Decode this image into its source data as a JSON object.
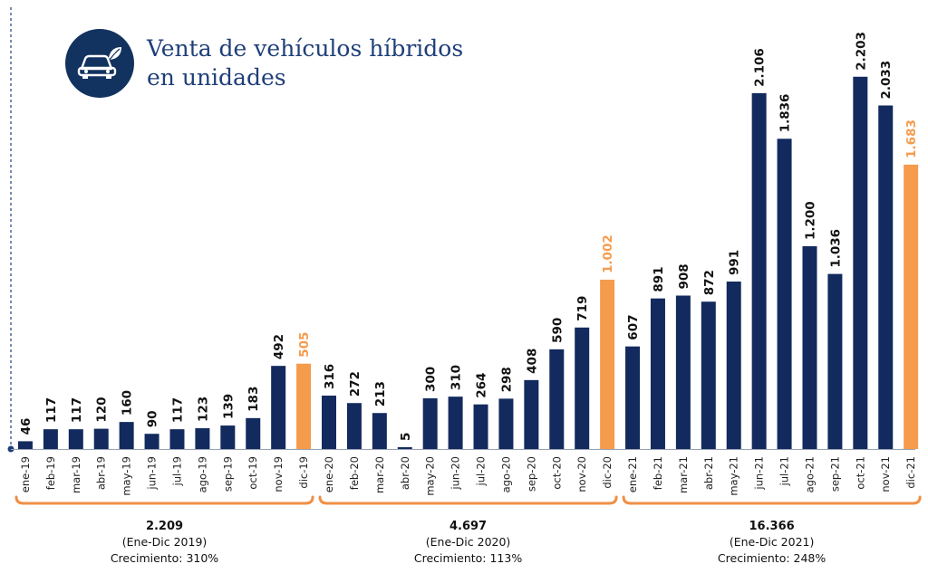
{
  "colors": {
    "bar": "#132a5e",
    "highlight": "#f59b4c",
    "bracket": "#f08f45",
    "axis": "#1f3f79",
    "text": "#111111"
  },
  "title_icon": "car-leaf-icon",
  "chart_data": {
    "type": "bar",
    "title_line1": "Venta de vehículos híbridos",
    "title_line2": "en unidades",
    "ylim": [
      0,
      2400
    ],
    "categories": [
      "ene-19",
      "feb-19",
      "mar-19",
      "abr-19",
      "may-19",
      "jun-19",
      "jul-19",
      "ago-19",
      "sep-19",
      "oct-19",
      "nov-19",
      "dic-19",
      "ene-20",
      "feb-20",
      "mar-20",
      "abr-20",
      "may-20",
      "jun-20",
      "jul-20",
      "ago-20",
      "sep-20",
      "oct-20",
      "nov-20",
      "dic-20",
      "ene-21",
      "feb-21",
      "mar-21",
      "abr-21",
      "may-21",
      "jun-21",
      "jul-21",
      "ago-21",
      "sep-21",
      "oct-21",
      "nov-21",
      "dic-21"
    ],
    "values": [
      46,
      117,
      117,
      120,
      160,
      90,
      117,
      123,
      139,
      183,
      492,
      505,
      316,
      272,
      213,
      5,
      300,
      310,
      264,
      298,
      408,
      590,
      719,
      1002,
      607,
      891,
      908,
      872,
      991,
      2106,
      1836,
      1200,
      1036,
      2203,
      2033,
      1683
    ],
    "value_labels": [
      "46",
      "117",
      "117",
      "120",
      "160",
      "90",
      "117",
      "123",
      "139",
      "183",
      "492",
      "505",
      "316",
      "272",
      "213",
      "5",
      "300",
      "310",
      "264",
      "298",
      "408",
      "590",
      "719",
      "1.002",
      "607",
      "891",
      "908",
      "872",
      "991",
      "2.106",
      "1.836",
      "1.200",
      "1.036",
      "2.203",
      "2.033",
      "1.683"
    ],
    "highlighted": [
      "dic-19",
      "dic-20",
      "dic-21"
    ],
    "groups": [
      {
        "total": "2.209",
        "period": "(Ene-Dic 2019)",
        "growth": "Crecimiento: 310%"
      },
      {
        "total": "4.697",
        "period": "(Ene-Dic 2020)",
        "growth": "Crecimiento: 113%"
      },
      {
        "total": "16.366",
        "period": "(Ene-Dic 2021)",
        "growth": "Crecimiento: 248%"
      }
    ]
  }
}
